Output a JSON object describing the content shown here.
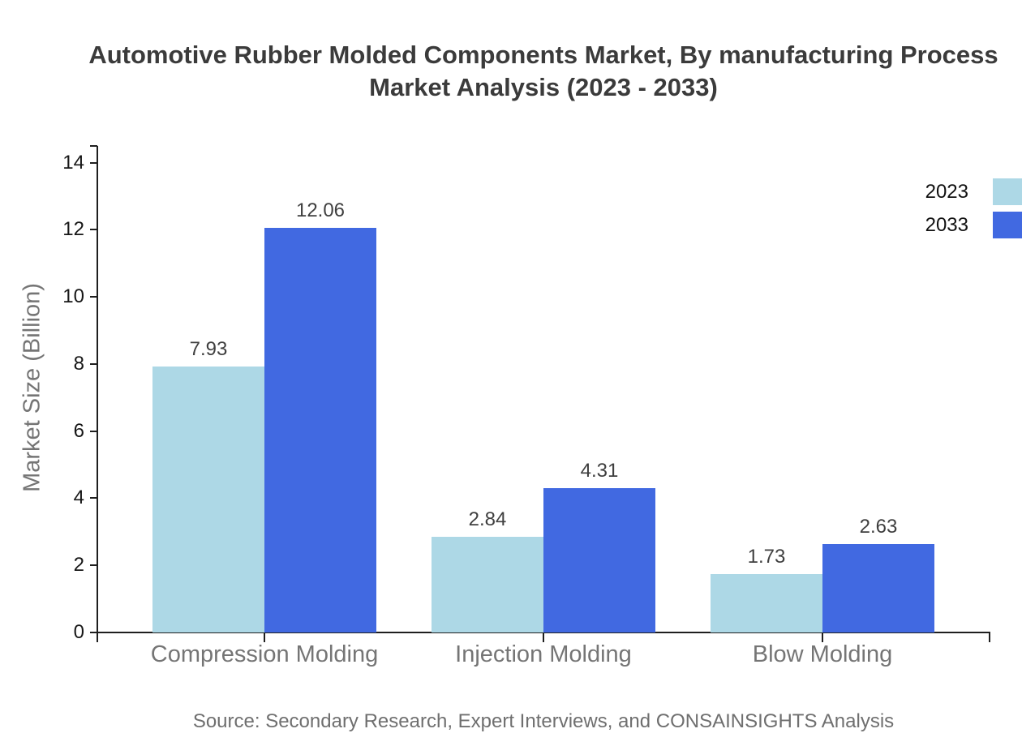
{
  "title": {
    "line1": "Automotive Rubber Molded Components Market, By manufacturing Process",
    "line2": "Market Analysis (2023 - 2033)"
  },
  "source_note": "Source: Secondary Research, Expert Interviews, and CONSAINSIGHTS Analysis",
  "chart_data": {
    "type": "bar",
    "title": "Automotive Rubber Molded Components Market, By manufacturing Process Market Analysis (2023 - 2033)",
    "categories": [
      "Compression Molding",
      "Injection Molding",
      "Blow Molding"
    ],
    "series": [
      {
        "name": "2023",
        "color": "#ADD8E6",
        "values": [
          7.93,
          2.84,
          1.73
        ]
      },
      {
        "name": "2033",
        "color": "#4169E1",
        "values": [
          12.06,
          4.31,
          2.63
        ]
      }
    ],
    "xlabel": "",
    "ylabel": "Market Size (Billion)",
    "ylim": [
      0,
      14.5
    ],
    "yticks": [
      0,
      2,
      4,
      6,
      8,
      10,
      12,
      14
    ],
    "grid": false,
    "legend_position": "top-right",
    "value_labels": true,
    "colors": {
      "axis_line": "#1f1f1f",
      "tick_label": "#171717",
      "category_label": "#757575",
      "value_label": "#3f3f3f",
      "axis_title": "#757575",
      "title": "#3b3b3b",
      "source": "#6f6f6f"
    }
  }
}
